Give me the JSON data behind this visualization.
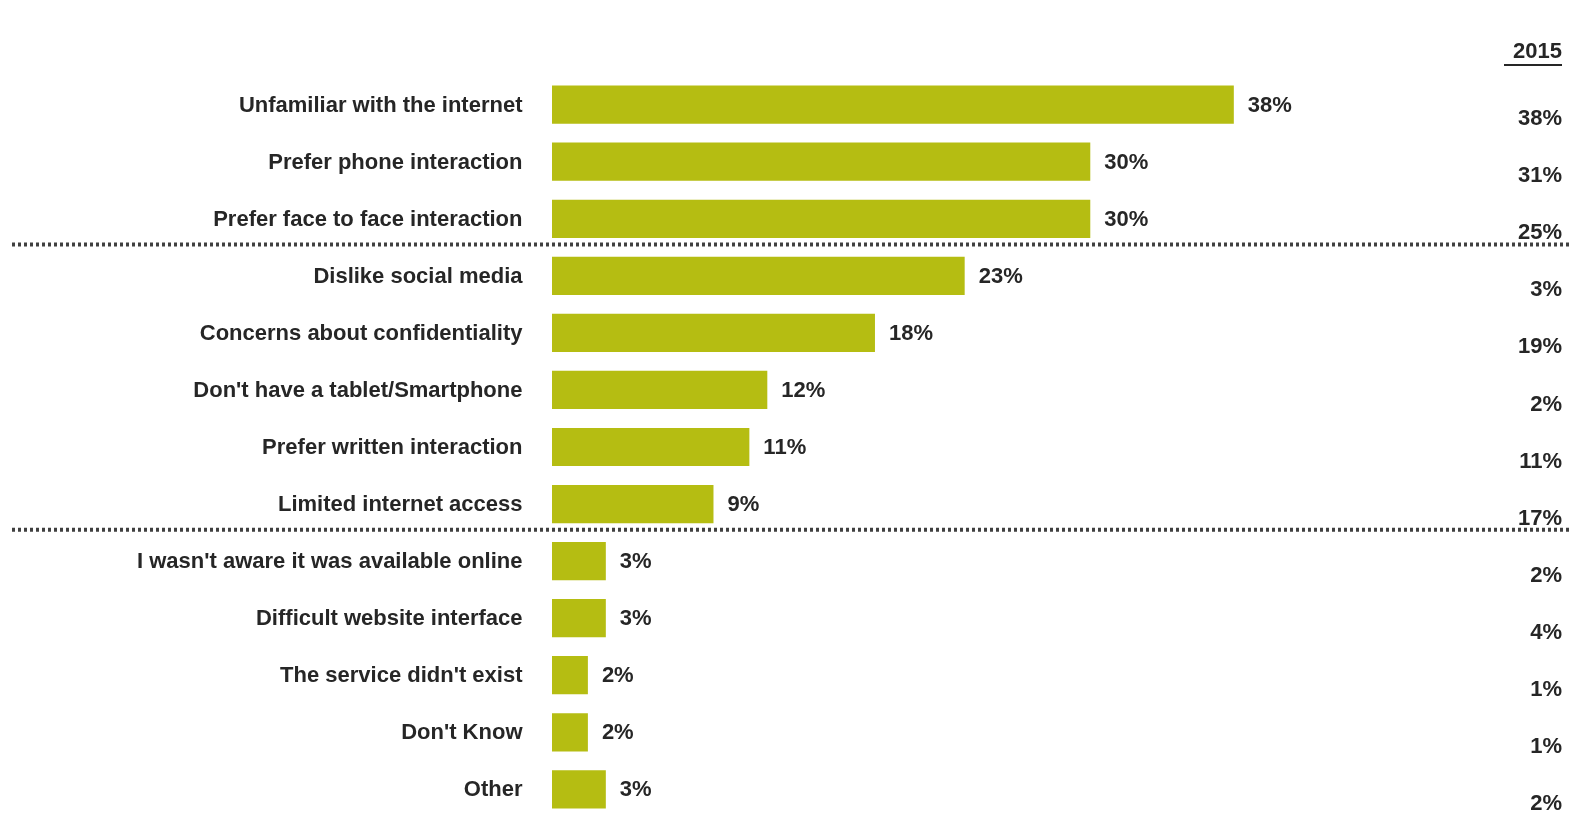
{
  "chart_data": {
    "type": "bar",
    "orientation": "horizontal",
    "categories": [
      "Unfamiliar with the internet",
      "Prefer phone interaction",
      "Prefer face to face interaction",
      "Dislike social media",
      "Concerns about confidentiality",
      "Don't have a tablet/Smartphone",
      "Prefer written interaction",
      "Limited internet access",
      "I wasn't aware it was available online",
      "Difficult website interface",
      "The service didn't exist",
      "Don't Know",
      "Other"
    ],
    "series": [
      {
        "color": "#b5bd12",
        "values": [
          38,
          30,
          30,
          23,
          18,
          12,
          11,
          9,
          3,
          3,
          2,
          2,
          3
        ],
        "value_labels": [
          "38%",
          "30%",
          "30%",
          "23%",
          "18%",
          "12%",
          "11%",
          "9%",
          "3%",
          "3%",
          "2%",
          "2%",
          "3%"
        ]
      }
    ],
    "ref_lines": [
      {
        "axis": "y",
        "value": "Prefer face to face interaction",
        "line_style": "dotted",
        "color": "#404040"
      },
      {
        "axis": "y",
        "value": "Limited internet access",
        "line_style": "dotted",
        "color": "#404040"
      }
    ],
    "annotations": [
      "2015",
      "38%",
      "31%",
      "25%",
      "3%",
      "19%",
      "2%",
      "11%",
      "17%",
      "2%",
      "4%",
      "1%",
      "1%",
      "2%"
    ]
  }
}
